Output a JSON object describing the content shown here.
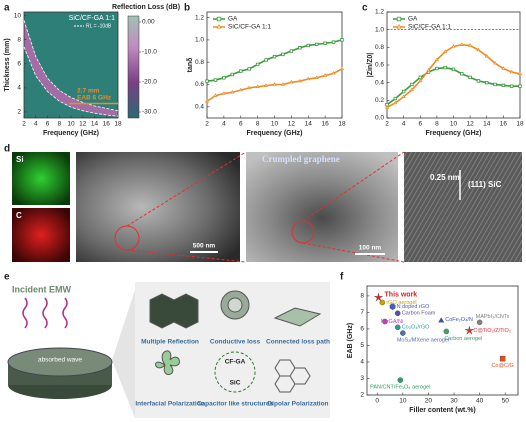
{
  "chart_data": [
    {
      "type": "contour",
      "panel_label": "a",
      "title": "Reflection Loss (dB)",
      "sample": "SiC/CF-GA 1:1",
      "xlabel": "Frequency (GHz)",
      "ylabel": "Thickness (mm)",
      "xlim": [
        2,
        18
      ],
      "xticks": [
        2,
        4,
        6,
        8,
        10,
        12,
        14,
        16,
        18
      ],
      "ylim": [
        1.5,
        10.3
      ],
      "yticks": [
        2,
        4,
        6,
        8,
        10
      ],
      "x": [
        2,
        4,
        6,
        8,
        10,
        12,
        14,
        16,
        18
      ],
      "series": [
        {
          "name": "RL = -10dB",
          "color": "#ffffff",
          "values": [
            9.6,
            6.6,
            4.8,
            3.8,
            3.2,
            2.8,
            2.5,
            2.3,
            2.1
          ]
        },
        {
          "color": "#ffffff",
          "values": [
            7.4,
            5.0,
            3.7,
            2.9,
            2.4,
            2.1,
            1.9,
            1.75,
            1.65
          ]
        }
      ],
      "hline": {
        "value": 2.7,
        "label": "2.7 mm",
        "color": "#f08a24"
      },
      "annotations": [
        "EAB 6 GHz"
      ],
      "colorbar": {
        "clim": [
          -32,
          2
        ],
        "ticks": [
          {
            "value": 0,
            "label": "0.00"
          },
          {
            "value": -10,
            "label": "-10.0"
          },
          {
            "value": -20,
            "label": "-20.0"
          },
          {
            "value": -30,
            "label": "-30.0"
          }
        ]
      }
    },
    {
      "type": "line",
      "panel_label": "b",
      "xlabel": "Frequency (GHz)",
      "ylabel": "tanδ",
      "xlim": [
        2,
        18
      ],
      "xticks": [
        2,
        4,
        6,
        8,
        10,
        12,
        14,
        16,
        18
      ],
      "ylim": [
        0.3,
        1.25
      ],
      "yticks": [
        0.4,
        0.6,
        0.8,
        {
          "value": 1,
          "label": "1.0"
        },
        1.2
      ],
      "x": [
        2,
        3,
        4,
        5,
        6,
        7,
        8,
        9,
        10,
        11,
        12,
        13,
        14,
        15,
        16,
        17,
        18
      ],
      "series": [
        {
          "name": "GA",
          "color": "#3a9a3a",
          "marker": "square",
          "values": [
            0.63,
            0.64,
            0.66,
            0.69,
            0.72,
            0.74,
            0.78,
            0.82,
            0.85,
            0.87,
            0.9,
            0.93,
            0.95,
            0.96,
            0.97,
            0.98,
            1.0
          ]
        },
        {
          "name": "SiC/CF-GA 1:1",
          "color": "#f08a24",
          "marker": "triangle",
          "values": [
            0.45,
            0.5,
            0.52,
            0.53,
            0.55,
            0.57,
            0.58,
            0.59,
            0.6,
            0.6,
            0.62,
            0.63,
            0.65,
            0.66,
            0.68,
            0.7,
            0.74
          ]
        }
      ]
    },
    {
      "type": "line",
      "panel_label": "c",
      "xlabel": "Frequency (GHz)",
      "ylabel": "|Zin/Z0|",
      "xlim": [
        2,
        18
      ],
      "xticks": [
        2,
        4,
        6,
        8,
        10,
        12,
        14,
        16,
        18
      ],
      "ylim": [
        0,
        1.2
      ],
      "yticks": [
        {
          "value": 0,
          "label": "0.0"
        },
        0.2,
        0.4,
        0.6,
        0.8,
        {
          "value": 1,
          "label": "1.0"
        },
        1.2
      ],
      "hline": {
        "value": 1,
        "color": "#333333"
      },
      "x": [
        2,
        3,
        4,
        5,
        6,
        7,
        8,
        9,
        10,
        11,
        12,
        13,
        14,
        15,
        16,
        17,
        18
      ],
      "series": [
        {
          "name": "GA",
          "color": "#3a9a3a",
          "marker": "square",
          "values": [
            0.15,
            0.22,
            0.3,
            0.38,
            0.46,
            0.52,
            0.56,
            0.57,
            0.55,
            0.5,
            0.46,
            0.42,
            0.4,
            0.38,
            0.37,
            0.36,
            0.36
          ]
        },
        {
          "name": "SiC/CF-GA 1:1",
          "color": "#f08a24",
          "marker": "triangle",
          "values": [
            0.12,
            0.17,
            0.24,
            0.32,
            0.42,
            0.54,
            0.66,
            0.75,
            0.81,
            0.83,
            0.82,
            0.77,
            0.7,
            0.62,
            0.56,
            0.52,
            0.5
          ]
        }
      ]
    },
    {
      "type": "scatter",
      "panel_label": "f",
      "xlabel": "Filler content (wt.%)",
      "ylabel": "EAB (GHz)",
      "xlim": [
        -4,
        55
      ],
      "xticks": [
        0,
        10,
        20,
        30,
        40,
        50
      ],
      "ylim": [
        2,
        8.6
      ],
      "yticks": [
        2,
        3,
        4,
        5,
        6,
        7,
        8
      ],
      "points": [
        {
          "name": "This work",
          "x": 0.5,
          "y": 7.9,
          "color": "#e02020",
          "marker": "star"
        },
        {
          "name": "rGO aerogel",
          "x": 2,
          "y": 7.6,
          "color": "#d0a000",
          "marker": "circle"
        },
        {
          "name": "N doped rGO",
          "x": 6,
          "y": 7.35,
          "color": "#4060c0",
          "marker": "hexagon"
        },
        {
          "name": "Carbon Foam",
          "x": 8,
          "y": 6.95,
          "color": "#6050a0",
          "marker": "circle"
        },
        {
          "name": "N-rGA/Ni",
          "x": 3,
          "y": 6.45,
          "color": "#c040c0",
          "marker": "circle"
        },
        {
          "name": "Co₃O₄/rGO",
          "x": 8,
          "y": 6.1,
          "color": "#2a9a9a",
          "marker": "circle"
        },
        {
          "name": "MoS₂/MXene aerogel",
          "x": 10,
          "y": 5.75,
          "color": "#4a70b0",
          "marker": "circle"
        },
        {
          "name": "CoFe₂O₄/N",
          "x": 25,
          "y": 6.5,
          "color": "#4050c0",
          "marker": "triangle"
        },
        {
          "name": "Carbon aerogel",
          "x": 27,
          "y": 5.85,
          "color": "#40a060",
          "marker": "circle"
        },
        {
          "name": "MAPbI₃/CNTs",
          "x": 40,
          "y": 6.4,
          "color": "#808080",
          "marker": "circle"
        },
        {
          "name": "C@TiO₂/Z/TiO₂",
          "x": 36,
          "y": 5.9,
          "color": "#e03030",
          "marker": "star"
        },
        {
          "name": "Co@C/G",
          "x": 49,
          "y": 4.2,
          "color": "#e05020",
          "marker": "square"
        },
        {
          "name": "PAN/CNT/Fe₃O₄ aerogel",
          "x": 9,
          "y": 2.9,
          "color": "#30a060",
          "marker": "circle"
        }
      ]
    }
  ],
  "panel_d": {
    "label": "d",
    "si": "Si",
    "c": "C",
    "scale_1": "500 nm",
    "scale_2": "100 nm",
    "crumpled": "Crumpled graphene",
    "d_spacing": "0.25 nm",
    "plane": "(111) SiC"
  },
  "panel_e": {
    "label": "e",
    "incident": "Incident EMW",
    "absorbed": "absorbed wave",
    "mechanisms": [
      "Multiple Reflection",
      "Conductive loss",
      "Connected loss path",
      "Interfacial Polarization",
      "Capacitor like structures",
      "Dipolar Polarization"
    ],
    "cf_ga": "CF-GA",
    "sic": "SiC"
  }
}
